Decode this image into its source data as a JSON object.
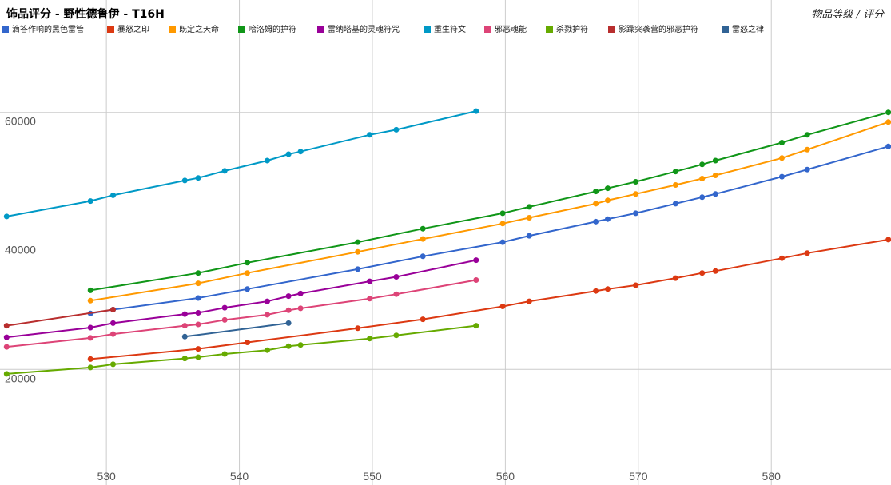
{
  "chart_data": {
    "type": "line",
    "title": "饰品评分 - 野性德鲁伊 - T16H",
    "subtitle": "物品等级 / 评分",
    "xlabel": "",
    "ylabel": "",
    "xlim": [
      522,
      589
    ],
    "ylim": [
      2000,
      77500
    ],
    "x_ticks": [
      530,
      540,
      550,
      560,
      570,
      580
    ],
    "x_tick_labels": [
      "530",
      "540",
      "550",
      "560",
      "570",
      "580"
    ],
    "y_ticks": [
      20000,
      40000,
      60000
    ],
    "y_tick_labels": [
      "20000",
      "40000",
      "60000"
    ],
    "grid": true,
    "legend_position": "top",
    "series": [
      {
        "name": "滴答作响的黑色雷管",
        "color": "#3366cc",
        "points": [
          [
            528.8,
            28700
          ],
          [
            530.5,
            29300
          ],
          [
            536.9,
            31100
          ],
          [
            540.6,
            32500
          ],
          [
            548.9,
            35600
          ],
          [
            553.8,
            37600
          ],
          [
            559.8,
            39800
          ],
          [
            561.8,
            40800
          ],
          [
            566.8,
            43000
          ],
          [
            567.7,
            43400
          ],
          [
            569.8,
            44300
          ],
          [
            572.8,
            45800
          ],
          [
            574.8,
            46800
          ],
          [
            575.8,
            47300
          ],
          [
            580.8,
            50000
          ],
          [
            582.7,
            51100
          ],
          [
            588.8,
            54700
          ]
        ]
      },
      {
        "name": "暴怒之印",
        "color": "#dc3912",
        "points": [
          [
            528.8,
            21600
          ],
          [
            536.9,
            23200
          ],
          [
            540.6,
            24200
          ],
          [
            548.9,
            26400
          ],
          [
            553.8,
            27800
          ],
          [
            559.8,
            29800
          ],
          [
            561.8,
            30600
          ],
          [
            566.8,
            32200
          ],
          [
            567.7,
            32500
          ],
          [
            569.8,
            33100
          ],
          [
            572.8,
            34200
          ],
          [
            574.8,
            35000
          ],
          [
            575.8,
            35300
          ],
          [
            580.8,
            37300
          ],
          [
            582.7,
            38100
          ],
          [
            588.8,
            40200
          ]
        ]
      },
      {
        "name": "既定之天命",
        "color": "#ff9900",
        "points": [
          [
            528.8,
            30700
          ],
          [
            536.9,
            33400
          ],
          [
            540.6,
            35000
          ],
          [
            548.9,
            38300
          ],
          [
            553.8,
            40300
          ],
          [
            559.8,
            42700
          ],
          [
            561.8,
            43600
          ],
          [
            566.8,
            45800
          ],
          [
            567.7,
            46300
          ],
          [
            569.8,
            47300
          ],
          [
            572.8,
            48700
          ],
          [
            574.8,
            49700
          ],
          [
            575.8,
            50200
          ],
          [
            580.8,
            52900
          ],
          [
            582.7,
            54200
          ],
          [
            588.8,
            58500
          ]
        ]
      },
      {
        "name": "哈洛姆的护符",
        "color": "#109618",
        "points": [
          [
            528.8,
            32300
          ],
          [
            536.9,
            35000
          ],
          [
            540.6,
            36600
          ],
          [
            548.9,
            39800
          ],
          [
            553.8,
            41900
          ],
          [
            559.8,
            44300
          ],
          [
            561.8,
            45300
          ],
          [
            566.8,
            47700
          ],
          [
            567.7,
            48200
          ],
          [
            569.8,
            49200
          ],
          [
            572.8,
            50800
          ],
          [
            574.8,
            51900
          ],
          [
            575.8,
            52500
          ],
          [
            580.8,
            55300
          ],
          [
            582.7,
            56500
          ],
          [
            588.8,
            60000
          ]
        ]
      },
      {
        "name": "雷纳塔基的灵魂符咒",
        "color": "#990099",
        "points": [
          [
            522.5,
            25000
          ],
          [
            528.8,
            26500
          ],
          [
            530.5,
            27200
          ],
          [
            535.9,
            28600
          ],
          [
            536.9,
            28800
          ],
          [
            538.9,
            29600
          ],
          [
            542.1,
            30600
          ],
          [
            543.7,
            31400
          ],
          [
            544.6,
            31800
          ],
          [
            549.8,
            33700
          ],
          [
            551.8,
            34400
          ],
          [
            557.8,
            37000
          ]
        ]
      },
      {
        "name": "重生符文",
        "color": "#0099c6",
        "points": [
          [
            522.5,
            43800
          ],
          [
            528.8,
            46200
          ],
          [
            530.5,
            47100
          ],
          [
            535.9,
            49400
          ],
          [
            536.9,
            49800
          ],
          [
            538.9,
            50900
          ],
          [
            542.1,
            52500
          ],
          [
            543.7,
            53500
          ],
          [
            544.6,
            53900
          ],
          [
            549.8,
            56500
          ],
          [
            551.8,
            57300
          ],
          [
            557.8,
            60200
          ]
        ]
      },
      {
        "name": "邪恶魂能",
        "color": "#dd4477",
        "points": [
          [
            522.5,
            23500
          ],
          [
            528.8,
            24900
          ],
          [
            530.5,
            25500
          ],
          [
            535.9,
            26800
          ],
          [
            536.9,
            27000
          ],
          [
            538.9,
            27700
          ],
          [
            542.1,
            28500
          ],
          [
            543.7,
            29200
          ],
          [
            544.6,
            29500
          ],
          [
            549.8,
            31000
          ],
          [
            551.8,
            31700
          ],
          [
            557.8,
            33900
          ]
        ]
      },
      {
        "name": "杀戮护符",
        "color": "#66aa00",
        "points": [
          [
            522.5,
            19300
          ],
          [
            528.8,
            20300
          ],
          [
            530.5,
            20800
          ],
          [
            535.9,
            21700
          ],
          [
            536.9,
            21900
          ],
          [
            538.9,
            22400
          ],
          [
            542.1,
            23000
          ],
          [
            543.7,
            23600
          ],
          [
            544.6,
            23800
          ],
          [
            549.8,
            24800
          ],
          [
            551.8,
            25300
          ],
          [
            557.8,
            26800
          ]
        ]
      },
      {
        "name": "影躁突袭营的邪恶护符",
        "color": "#b82e2e",
        "points": [
          [
            522.5,
            26800
          ],
          [
            530.5,
            29300
          ]
        ]
      },
      {
        "name": "雷怒之律",
        "color": "#316395",
        "points": [
          [
            535.9,
            25100
          ],
          [
            543.7,
            27200
          ]
        ]
      }
    ]
  }
}
